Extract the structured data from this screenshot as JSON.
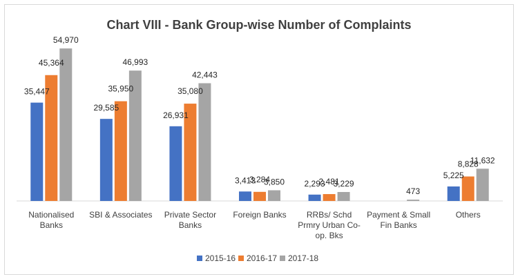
{
  "chart_data": {
    "type": "bar",
    "title": "Chart VIII - Bank Group-wise Number of Complaints",
    "categories": [
      [
        "Nationalised",
        "Banks"
      ],
      [
        "SBI & Associates"
      ],
      [
        "Private Sector",
        "Banks"
      ],
      [
        "Foreign Banks"
      ],
      [
        "RRBs/ Schd",
        "Prmry Urban Co-",
        "op. Bks"
      ],
      [
        "Payment & Small",
        "Fin Banks"
      ],
      [
        "Others"
      ]
    ],
    "series": [
      {
        "name": "2015-16",
        "color": "#4472c4",
        "values": [
          35447,
          29585,
          26931,
          3413,
          2293,
          null,
          5225
        ],
        "labels": [
          "35,447",
          "29,585",
          "26,931",
          "3,413",
          "2,293",
          "",
          "5,225"
        ]
      },
      {
        "name": "2016-17",
        "color": "#ed7d31",
        "values": [
          45364,
          35950,
          35080,
          3284,
          2481,
          null,
          8828
        ],
        "labels": [
          "45,364",
          "35,950",
          "35,080",
          "3,284",
          "2,481",
          "",
          "8,828"
        ]
      },
      {
        "name": "2017-18",
        "color": "#a5a5a5",
        "values": [
          54970,
          46993,
          42443,
          3850,
          3229,
          473,
          11632
        ],
        "labels": [
          "54,970",
          "46,993",
          "42,443",
          "3,850",
          "3,229",
          "473",
          "11,632"
        ]
      }
    ],
    "ylim": [
      0,
      58000
    ],
    "grid": false,
    "legend_position": "bottom"
  }
}
